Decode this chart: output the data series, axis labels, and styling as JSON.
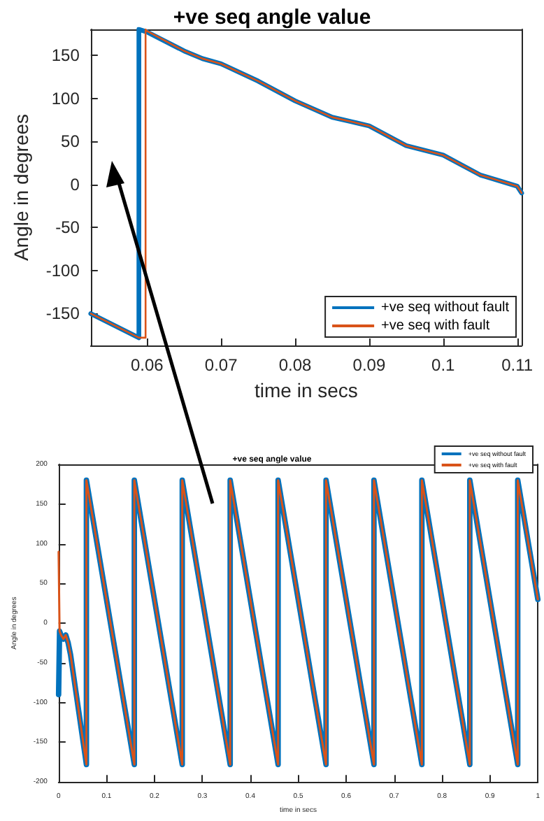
{
  "chart_data": [
    {
      "type": "line",
      "title": "+ve seq angle value",
      "xlabel": "time in secs",
      "ylabel": "Angle in degrees",
      "xlim": [
        0.0524,
        0.1106
      ],
      "xticks": [
        0.06,
        0.07,
        0.08,
        0.09,
        0.1,
        0.11
      ],
      "ylim": [
        -187,
        180
      ],
      "yticks": [
        -150,
        -100,
        -50,
        0,
        50,
        100,
        150
      ],
      "legend": "bottom right",
      "marker": "none",
      "line_style": "solid",
      "series": [
        {
          "name": "+ve seq without fault",
          "color": "#0072bd",
          "x": [
            0.0524,
            0.0589,
            0.0589,
            0.06,
            0.065,
            0.0675,
            0.07,
            0.075,
            0.08,
            0.085,
            0.0875,
            0.09,
            0.095,
            0.1,
            0.105,
            0.11,
            0.1106
          ],
          "values": [
            -150,
            -178,
            180,
            177,
            155,
            146,
            140,
            120,
            97,
            78,
            73,
            68,
            45,
            34,
            11,
            -2,
            -10
          ]
        },
        {
          "name": "+ve seq with fault",
          "color": "#d95319",
          "x": [
            0.0524,
            0.0589,
            0.0598,
            0.0598,
            0.06,
            0.065,
            0.0675,
            0.07,
            0.075,
            0.08,
            0.085,
            0.0875,
            0.09,
            0.095,
            0.1,
            0.105,
            0.11,
            0.1106
          ],
          "values": [
            -150,
            -178,
            -178,
            180,
            178,
            155,
            146,
            140,
            120,
            97,
            78,
            73,
            68,
            45,
            34,
            11,
            -2,
            -10
          ]
        }
      ]
    },
    {
      "type": "line",
      "title": "+ve seq angle value",
      "xlabel": "time in secs",
      "ylabel": "Angle in degrees",
      "xlim": [
        0,
        1
      ],
      "xticks": [
        0,
        0.1,
        0.2,
        0.3,
        0.4,
        0.5,
        0.6,
        0.7,
        0.8,
        0.9,
        1
      ],
      "ylim": [
        -200,
        200
      ],
      "yticks": [
        -200,
        -150,
        -100,
        -50,
        0,
        50,
        100,
        150,
        200
      ],
      "legend": "top right",
      "marker": "none",
      "line_style": "solid",
      "series": [
        {
          "name": "+ve seq without fault",
          "color": "#0072bd",
          "x": [
            0,
            0.002,
            0.005,
            0.01,
            0.015,
            0.02,
            0.025,
            0.058,
            0.058,
            0.158,
            0.158,
            0.258,
            0.258,
            0.358,
            0.358,
            0.458,
            0.458,
            0.558,
            0.558,
            0.658,
            0.658,
            0.758,
            0.758,
            0.858,
            0.858,
            0.958,
            0.958,
            1
          ],
          "values": [
            -90,
            -10,
            -15,
            -20,
            -15,
            -25,
            -40,
            -178,
            180,
            -178,
            180,
            -178,
            180,
            -178,
            180,
            -178,
            180,
            -178,
            180,
            -178,
            180,
            -178,
            180,
            -178,
            180,
            -178,
            180,
            30
          ]
        },
        {
          "name": "+ve seq with fault",
          "color": "#d95319",
          "x": [
            0,
            0.002,
            0.005,
            0.01,
            0.015,
            0.02,
            0.025,
            0.058,
            0.058,
            0.158,
            0.158,
            0.258,
            0.258,
            0.358,
            0.358,
            0.458,
            0.458,
            0.558,
            0.558,
            0.658,
            0.658,
            0.758,
            0.758,
            0.858,
            0.858,
            0.958,
            0.958,
            1
          ],
          "values": [
            90,
            -10,
            -15,
            -20,
            -15,
            -25,
            -40,
            -178,
            180,
            -178,
            180,
            -178,
            180,
            -178,
            180,
            -178,
            180,
            -178,
            180,
            -178,
            180,
            -178,
            180,
            -178,
            180,
            -178,
            180,
            30
          ]
        }
      ]
    }
  ]
}
